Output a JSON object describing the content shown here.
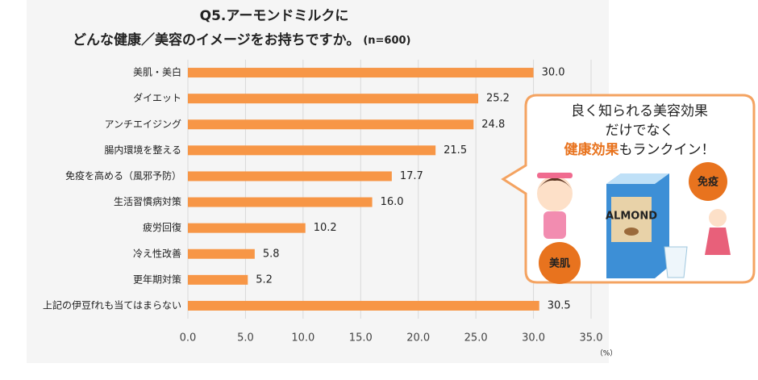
{
  "chart_data": {
    "type": "bar",
    "orientation": "horizontal",
    "title_lines": [
      "Q5.アーモンドミルクに",
      "どんな健康／美容のイメージをお持ちですか。"
    ],
    "subtitle": "(n=600)",
    "unit_label": "（%）",
    "categories": [
      "美肌・美白",
      "ダイエット",
      "アンチエイジング",
      "腸内環境を整える",
      "免疫を高める（風邪予防）",
      "生活習慣病対策",
      "疲労回復",
      "冷え性改善",
      "更年期対策",
      "上記の伊豆fれも当てはまらない"
    ],
    "values": [
      30.0,
      25.2,
      24.8,
      21.5,
      17.7,
      16.0,
      10.2,
      5.8,
      5.2,
      30.5
    ],
    "value_labels": [
      "30.0",
      "25.2",
      "24.8",
      "21.5",
      "17.7",
      "16.0",
      "10.2",
      "5.8",
      "5.2",
      "30.5"
    ],
    "color": "#f79646",
    "xlim": [
      0,
      35
    ],
    "xticks": [
      {
        "value": 0,
        "label": "0.0"
      },
      {
        "value": 5,
        "label": "5.0"
      },
      {
        "value": 10,
        "label": "10.0"
      },
      {
        "value": 15,
        "label": "15.0"
      },
      {
        "value": 20,
        "label": "20.0"
      },
      {
        "value": 25,
        "label": "25.0"
      },
      {
        "value": 30,
        "label": "30.0"
      },
      {
        "value": 35,
        "label": "35.0"
      }
    ],
    "grid": true
  },
  "callout": {
    "lines": [
      "良く知られる美容効果",
      "だけでなく"
    ],
    "highlight": "健康効果",
    "rest": "もランクイン！",
    "badges": [
      "免疫",
      "美肌"
    ],
    "product": "ALMOND"
  }
}
